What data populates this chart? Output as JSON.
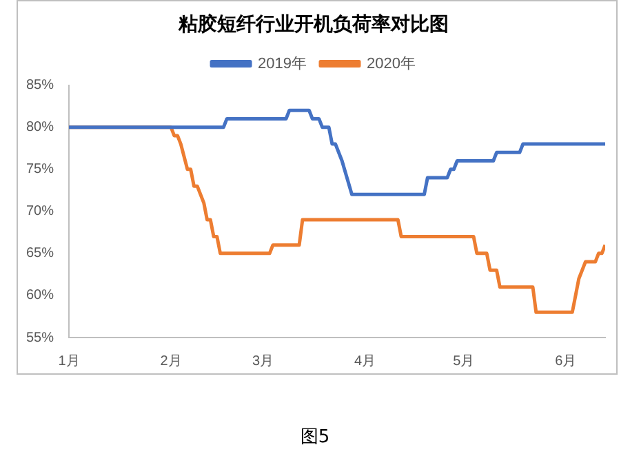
{
  "chart_data": {
    "type": "line",
    "title": "粘胶短纤行业开机负荷率对比图",
    "legend": "top",
    "marker": "none",
    "line_style": "solid",
    "grid": false,
    "xlim": [
      "--01-01",
      "--06-13"
    ],
    "xticks": [
      {
        "value": "--01-01",
        "label": "1月"
      },
      {
        "value": "--02-01",
        "label": "2月"
      },
      {
        "value": "--03-01",
        "label": "3月"
      },
      {
        "value": "--04-01",
        "label": "4月"
      },
      {
        "value": "--05-01",
        "label": "5月"
      },
      {
        "value": "--06-01",
        "label": "6月"
      }
    ],
    "ylim": [
      55,
      85
    ],
    "yticks": [
      {
        "value": 55,
        "label": "55%"
      },
      {
        "value": 60,
        "label": "60%"
      },
      {
        "value": 65,
        "label": "65%"
      },
      {
        "value": 70,
        "label": "70%"
      },
      {
        "value": 75,
        "label": "75%"
      },
      {
        "value": 80,
        "label": "80%"
      },
      {
        "value": 85,
        "label": "85%"
      }
    ],
    "series": [
      {
        "name": "2019年",
        "color": "#4472c4",
        "x": [
          "--01-01",
          "--02-17",
          "--02-18",
          "--03-08",
          "--03-09",
          "--03-15",
          "--03-16",
          "--03-18",
          "--03-19",
          "--03-21",
          "--03-22",
          "--03-23",
          "--03-25",
          "--03-28",
          "--04-19",
          "--04-20",
          "--04-26",
          "--04-27",
          "--04-28",
          "--04-29",
          "--05-10",
          "--05-11",
          "--05-18",
          "--05-19",
          "--06-13"
        ],
        "values": [
          80,
          80,
          81,
          81,
          82,
          82,
          81,
          81,
          80,
          80,
          78,
          78,
          76,
          72,
          72,
          74,
          74,
          75,
          75,
          76,
          76,
          77,
          77,
          78,
          78
        ]
      },
      {
        "name": "2020年",
        "color": "#ed7d31",
        "x": [
          "--01-01",
          "--02-01",
          "--02-02",
          "--02-03",
          "--02-04",
          "--02-06",
          "--02-07",
          "--02-08",
          "--02-09",
          "--02-10",
          "--02-11",
          "--02-12",
          "--02-13",
          "--02-14",
          "--02-15",
          "--02-16",
          "--03-03",
          "--03-04",
          "--03-12",
          "--03-13",
          "--04-11",
          "--04-12",
          "--05-04",
          "--05-05",
          "--05-08",
          "--05-09",
          "--05-11",
          "--05-12",
          "--05-22",
          "--05-23",
          "--06-03",
          "--06-04",
          "--06-05",
          "--06-06",
          "--06-07",
          "--06-10",
          "--06-11",
          "--06-12",
          "--06-13"
        ],
        "values": [
          80,
          80,
          79,
          79,
          78,
          75,
          75,
          73,
          73,
          72,
          71,
          69,
          69,
          67,
          67,
          65,
          65,
          66,
          66,
          69,
          69,
          67,
          67,
          65,
          65,
          63,
          63,
          61,
          61,
          58,
          58,
          60,
          62,
          63,
          64,
          64,
          65,
          65,
          66
        ]
      }
    ],
    "annotations": [
      "图5"
    ]
  }
}
